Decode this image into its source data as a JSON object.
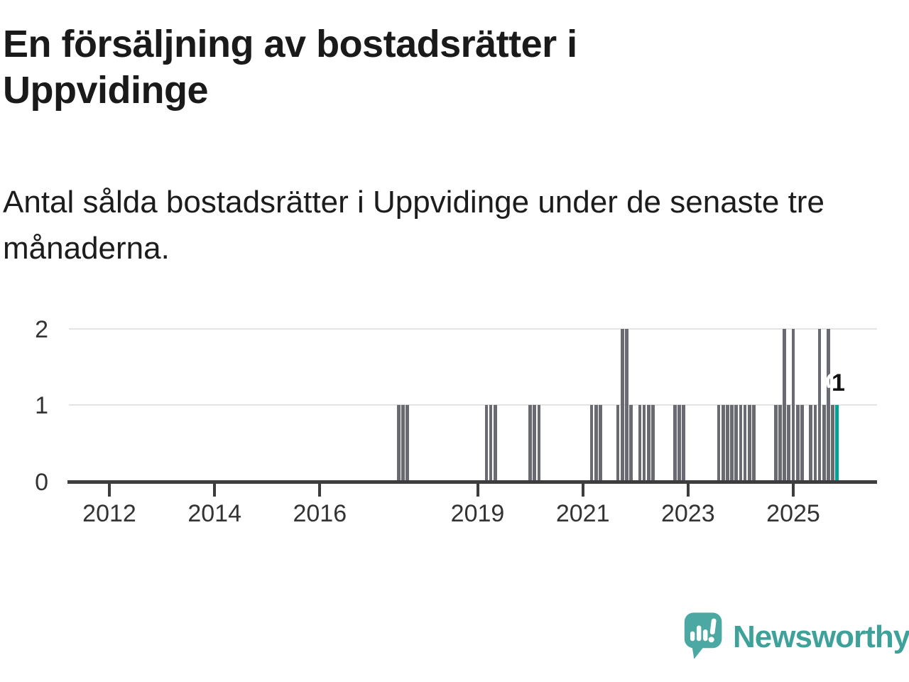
{
  "chart_data": {
    "type": "bar",
    "title": "En försäljning av bostadsrätter i Uppvidinge",
    "subtitle": "Antal sålda bostadsrätter i Uppvidinge under de senaste tre månaderna.",
    "x_axis": {
      "start_month": "2011-04",
      "end_month": "2025-11",
      "tick_years": [
        2012,
        2014,
        2016,
        2019,
        2021,
        2023,
        2025
      ]
    },
    "y_axis": {
      "ticks": [
        0,
        1,
        2
      ],
      "range": [
        0,
        2
      ]
    },
    "grid": "horizontal",
    "legend": null,
    "all_unlisted_months_value": 0,
    "values_nonzero_by_month": {
      "2017-07": 1,
      "2017-08": 1,
      "2017-09": 1,
      "2019-03": 1,
      "2019-04": 1,
      "2019-05": 1,
      "2020-01": 1,
      "2020-02": 1,
      "2020-03": 1,
      "2021-03": 1,
      "2021-04": 1,
      "2021-05": 1,
      "2021-09": 1,
      "2021-10": 2,
      "2021-11": 2,
      "2021-12": 1,
      "2022-02": 1,
      "2022-03": 1,
      "2022-04": 1,
      "2022-05": 1,
      "2022-10": 1,
      "2022-11": 1,
      "2022-12": 1,
      "2023-08": 1,
      "2023-09": 1,
      "2023-10": 1,
      "2023-11": 1,
      "2023-12": 1,
      "2024-01": 1,
      "2024-02": 1,
      "2024-03": 1,
      "2024-04": 1,
      "2024-09": 1,
      "2024-10": 1,
      "2024-11": 2,
      "2024-12": 1,
      "2025-01": 2,
      "2025-02": 1,
      "2025-03": 1,
      "2025-05": 1,
      "2025-06": 1,
      "2025-07": 2,
      "2025-08": 1,
      "2025-09": 2,
      "2025-10": 1,
      "2025-11": 1
    },
    "highlight": {
      "month": "2025-11",
      "value": 1,
      "label": "1"
    },
    "colors": {
      "bar": "#6a6a73",
      "highlight": "#00a298",
      "gridline": "#e4e4e4",
      "axis": "#3d3d3d",
      "tick_text": "#333333",
      "title_text": "#1a1a1a"
    }
  },
  "footer": {
    "brand": "Newsworthy",
    "logo_bubble_color": "#4ba8a2",
    "logo_text_color": "#3ea29b"
  }
}
